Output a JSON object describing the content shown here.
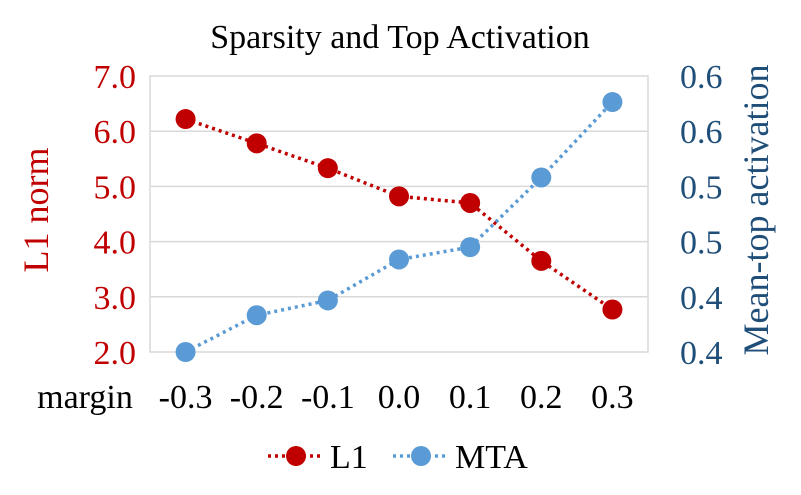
{
  "chart_data": {
    "type": "line",
    "title": "Sparsity and Top Activation",
    "xlabel": "margin",
    "categories": [
      "-0.3",
      "-0.2",
      "-0.1",
      "0.0",
      "0.1",
      "0.2",
      "0.3"
    ],
    "grid": true,
    "legend_position": "bottom",
    "left_axis": {
      "label": "L1 norm",
      "ylim": [
        2.0,
        7.0
      ],
      "ticks": [
        "2.0",
        "3.0",
        "4.0",
        "5.0",
        "6.0",
        "7.0"
      ],
      "color": "#C00000"
    },
    "right_axis": {
      "label": "Mean-top activation",
      "ylim": [
        0.4,
        0.65
      ],
      "ticks": [
        "0.4",
        "0.4",
        "0.5",
        "0.5",
        "0.6",
        "0.6"
      ],
      "color": "#1F4E79"
    },
    "series": [
      {
        "name": "L1",
        "axis": "left",
        "color": "#C00000",
        "line_style": "dotted",
        "values": [
          6.22,
          5.78,
          5.33,
          4.82,
          4.7,
          3.65,
          2.77
        ]
      },
      {
        "name": "MTA",
        "axis": "right",
        "color": "#5B9BD5",
        "line_style": "dotted",
        "values": [
          0.4,
          0.4333,
          0.4467,
          0.4838,
          0.495,
          0.5581,
          0.6264
        ]
      }
    ]
  }
}
